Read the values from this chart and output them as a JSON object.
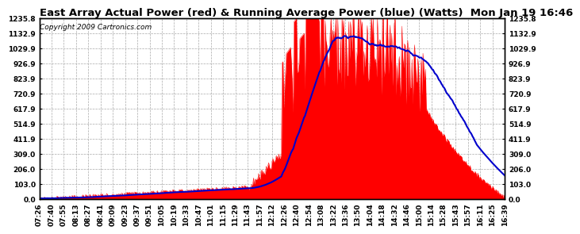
{
  "title": "East Array Actual Power (red) & Running Average Power (blue) (Watts)  Mon Jan 19 16:46",
  "copyright": "Copyright 2009 Cartronics.com",
  "background_color": "#ffffff",
  "grid_color": "#aaaaaa",
  "yticks": [
    0.0,
    103.0,
    206.0,
    309.0,
    411.9,
    514.9,
    617.9,
    720.9,
    823.9,
    926.9,
    1029.9,
    1132.9,
    1235.8
  ],
  "ymax": 1235.8,
  "ymin": 0.0,
  "x_labels": [
    "07:26",
    "07:40",
    "07:55",
    "08:13",
    "08:27",
    "08:41",
    "09:09",
    "09:23",
    "09:37",
    "09:51",
    "10:05",
    "10:19",
    "10:33",
    "10:47",
    "11:01",
    "11:15",
    "11:29",
    "11:43",
    "11:57",
    "12:12",
    "12:26",
    "12:40",
    "12:54",
    "13:08",
    "13:22",
    "13:36",
    "13:50",
    "14:04",
    "14:18",
    "14:32",
    "14:46",
    "15:00",
    "15:14",
    "15:28",
    "15:43",
    "15:57",
    "16:11",
    "16:25",
    "16:39"
  ],
  "fill_color": "#ff0000",
  "line_color_avg": "#0000cc",
  "title_fontsize": 9.5,
  "tick_fontsize": 6.5,
  "copyright_fontsize": 6.5
}
